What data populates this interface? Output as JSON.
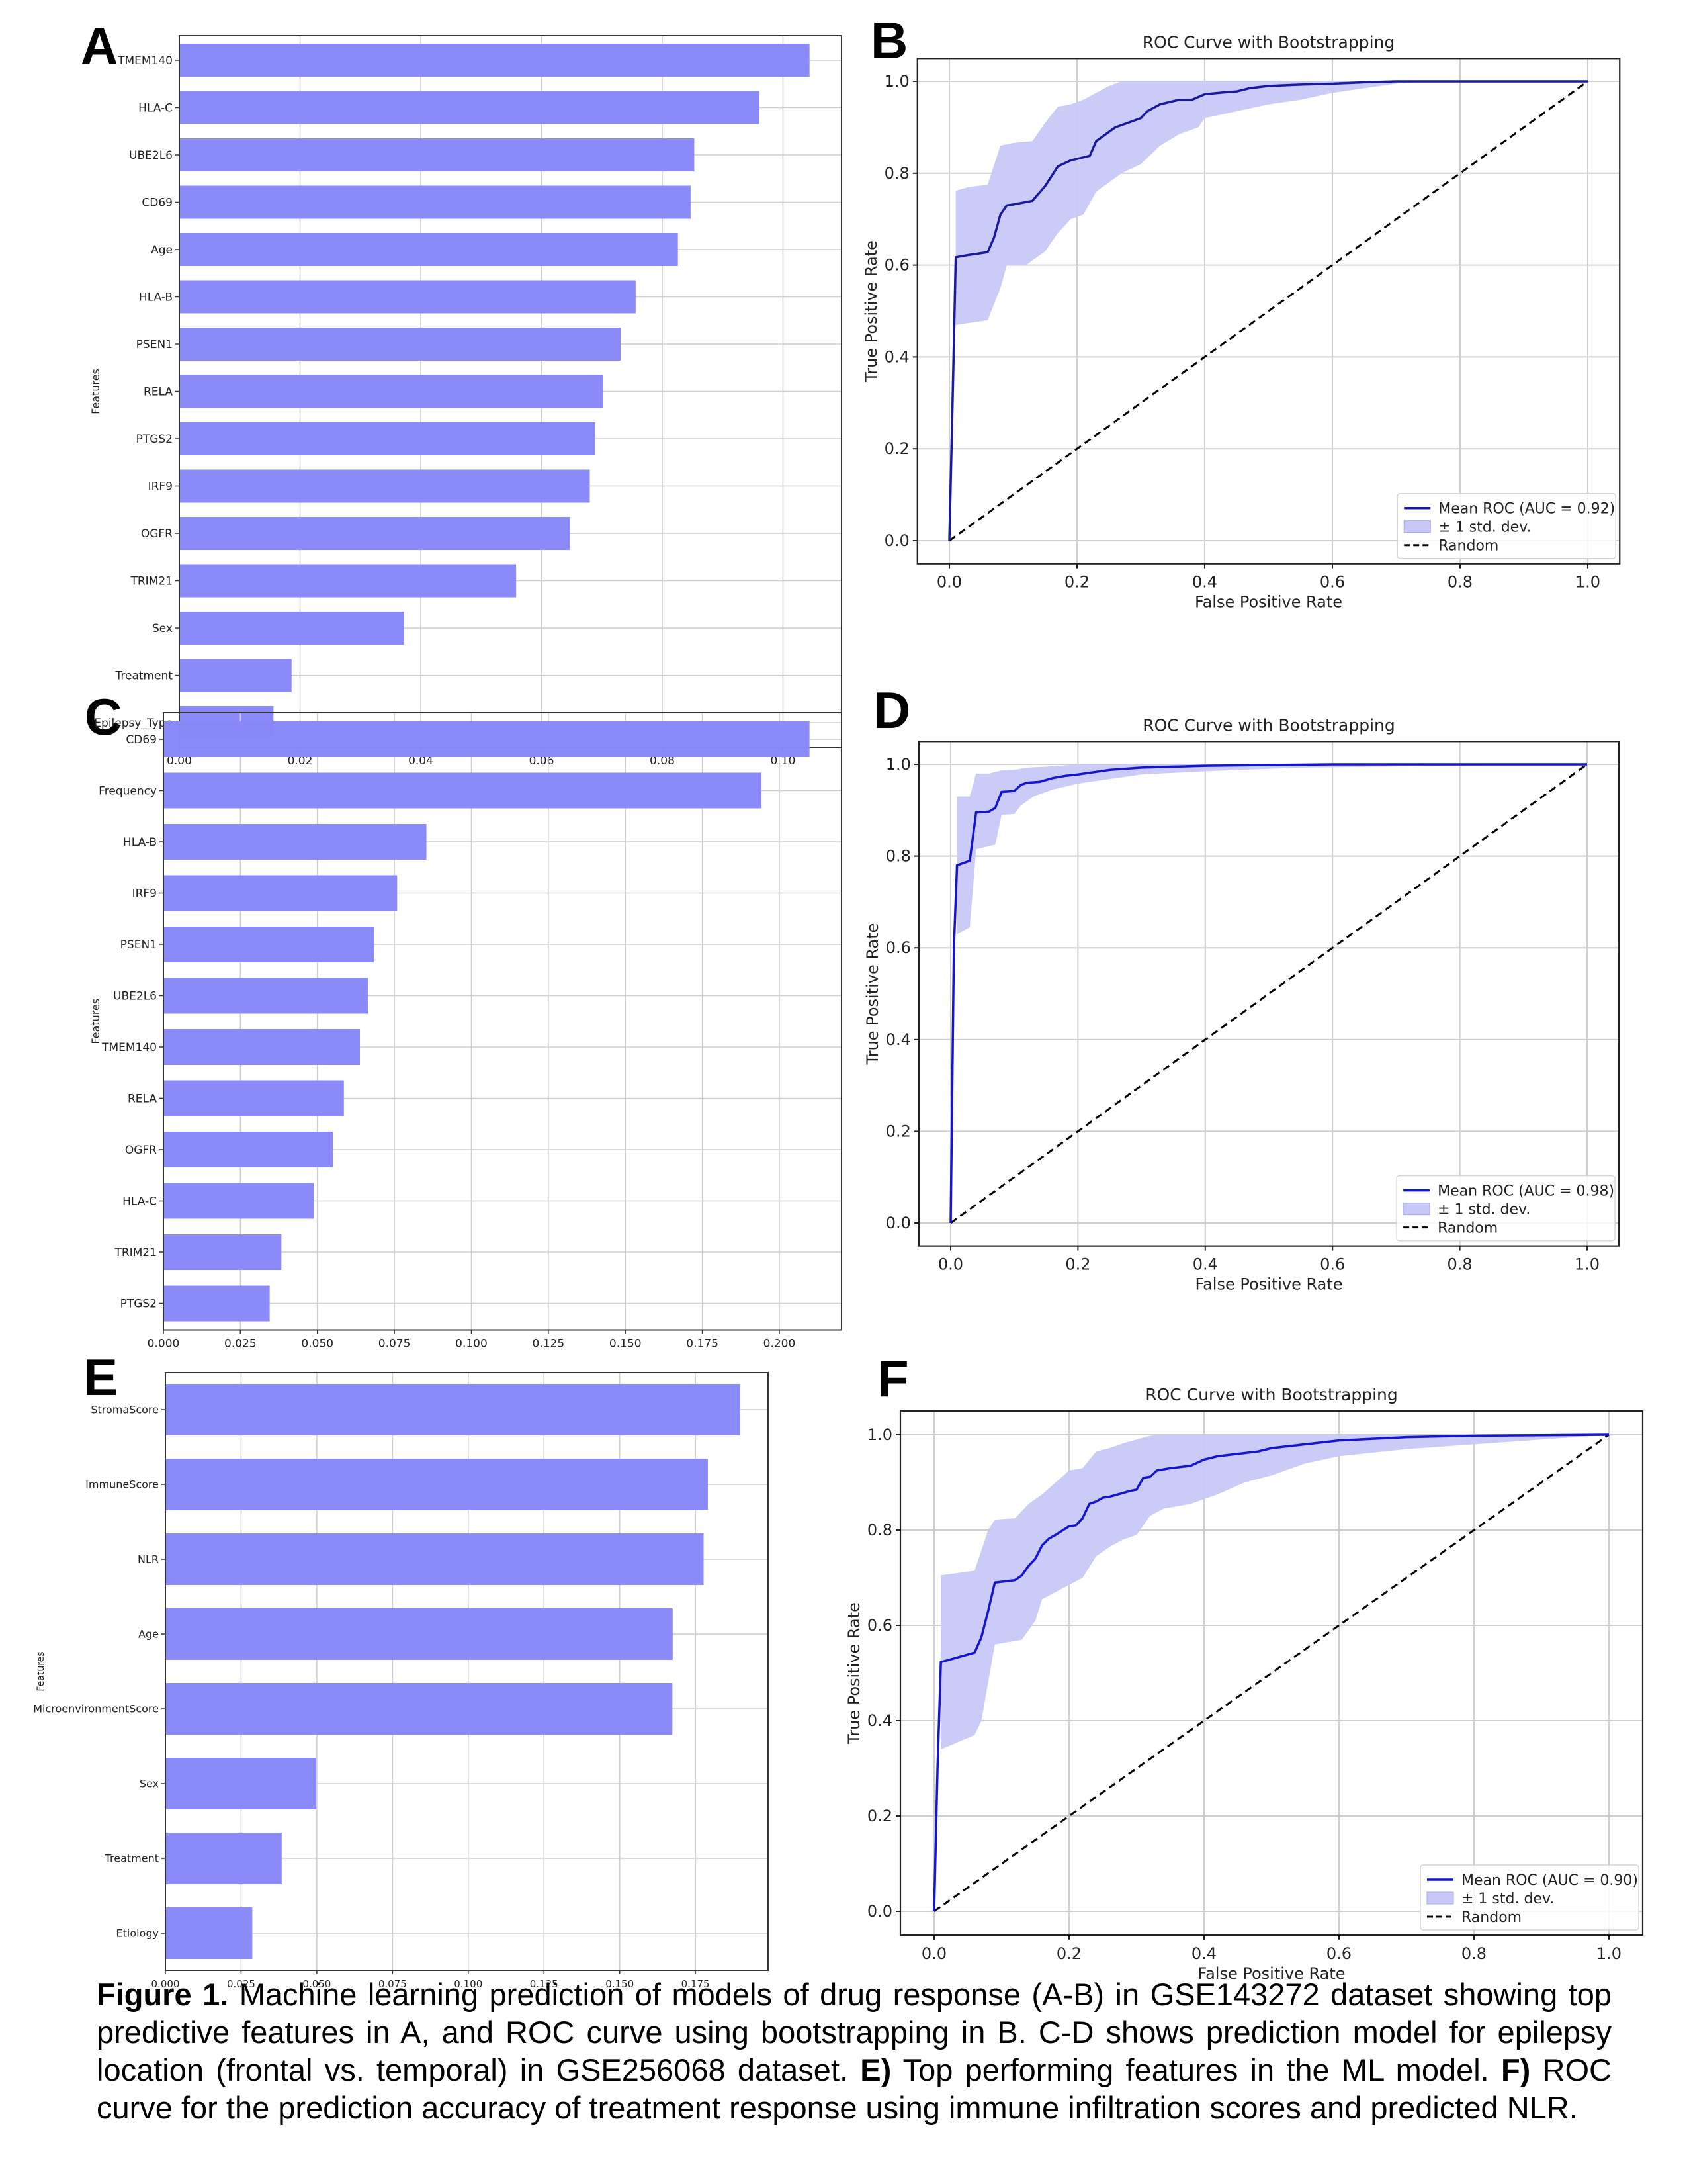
{
  "figure": {
    "caption": {
      "label": "Figure 1.",
      "part1": " Machine learning prediction of models of drug response (A-B) in GSE143272 dataset showing top predictive features in A, and ROC curve using bootstrapping in B. C-D shows prediction model for epilepsy location (frontal vs. temporal) in GSE256068 dataset. ",
      "e_label": "E)",
      "part2": " Top performing features in the ML model. ",
      "f_label": "F)",
      "part3": " ROC curve for the prediction accuracy of treatment response using immune infiltration scores and predicted NLR."
    },
    "colors": {
      "bar": "#8888f8",
      "roc_line": "#1a1aa0",
      "roc_line_bright": "#1515d0",
      "band": "#c8c8f8",
      "random": "#000000",
      "grid": "#cfcfcf"
    }
  },
  "chart_data": [
    {
      "panel": "A",
      "type": "bar",
      "orientation": "horizontal",
      "title": "",
      "xlabel": "",
      "ylabel": "Features",
      "categories": [
        "TMEM140",
        "HLA-C",
        "UBE2L6",
        "CD69",
        "Age",
        "HLA-B",
        "PSEN1",
        "RELA",
        "PTGS2",
        "IRF9",
        "OGFR",
        "TRIM21",
        "Sex",
        "Treatment",
        "Epilepsy_Type"
      ],
      "values": [
        0.1044,
        0.0961,
        0.0853,
        0.0847,
        0.0826,
        0.0756,
        0.0731,
        0.0702,
        0.0689,
        0.068,
        0.0647,
        0.0558,
        0.0372,
        0.0186,
        0.0156
      ],
      "xlim": [
        0,
        0.1097
      ],
      "xticks": [
        "0.00",
        "0.02",
        "0.04",
        "0.06",
        "0.08",
        "0.10"
      ],
      "xtick_values": [
        0,
        0.02,
        0.04,
        0.06,
        0.08,
        0.1
      ],
      "grid": true
    },
    {
      "panel": "B",
      "type": "line",
      "title": "ROC Curve with Bootstrapping",
      "xlabel": "False Positive Rate",
      "ylabel": "True Positive Rate",
      "xlim": [
        -0.05,
        1.05
      ],
      "ylim": [
        -0.05,
        1.05
      ],
      "xticks": [
        "0.0",
        "0.2",
        "0.4",
        "0.6",
        "0.8",
        "1.0"
      ],
      "yticks": [
        "0.0",
        "0.2",
        "0.4",
        "0.6",
        "0.8",
        "1.0"
      ],
      "tick_values": [
        0,
        0.2,
        0.4,
        0.6,
        0.8,
        1.0
      ],
      "grid": true,
      "legend": {
        "placement": "lower-right",
        "entries": [
          "Mean ROC (AUC = 0.92)",
          "± 1 std. dev.",
          "Random"
        ]
      },
      "series": [
        {
          "name": "Mean ROC (AUC = 0.92)",
          "x": [
            0,
            0.005,
            0.01,
            0.03,
            0.06,
            0.07,
            0.08,
            0.09,
            0.1,
            0.13,
            0.15,
            0.17,
            0.19,
            0.22,
            0.23,
            0.25,
            0.26,
            0.28,
            0.3,
            0.31,
            0.33,
            0.36,
            0.38,
            0.4,
            0.43,
            0.45,
            0.47,
            0.5,
            0.55,
            0.6,
            0.65,
            0.7,
            0.8,
            0.9,
            1.0
          ],
          "y": [
            0,
            0.3,
            0.617,
            0.622,
            0.628,
            0.66,
            0.71,
            0.73,
            0.732,
            0.74,
            0.772,
            0.815,
            0.828,
            0.838,
            0.87,
            0.89,
            0.9,
            0.91,
            0.92,
            0.935,
            0.95,
            0.96,
            0.96,
            0.972,
            0.976,
            0.978,
            0.985,
            0.99,
            0.993,
            0.995,
            0.998,
            1.0,
            1.0,
            1.0,
            1.0
          ]
        },
        {
          "name": "± 1 std. dev. upper",
          "x": [
            0.01,
            0.03,
            0.06,
            0.08,
            0.1,
            0.13,
            0.15,
            0.17,
            0.19,
            0.21,
            0.23,
            0.25,
            0.27,
            1.0
          ],
          "y": [
            0.762,
            0.77,
            0.775,
            0.86,
            0.866,
            0.87,
            0.91,
            0.945,
            0.95,
            0.96,
            0.975,
            0.99,
            1.0,
            1.0
          ]
        },
        {
          "name": "± 1 std. dev. lower",
          "x": [
            0.01,
            0.06,
            0.08,
            0.09,
            0.12,
            0.15,
            0.17,
            0.19,
            0.21,
            0.23,
            0.25,
            0.27,
            0.3,
            0.33,
            0.36,
            0.39,
            0.4,
            0.45,
            0.5,
            0.55,
            0.6,
            0.65,
            0.7,
            0.75,
            1.0
          ],
          "y": [
            0.47,
            0.48,
            0.55,
            0.6,
            0.6,
            0.63,
            0.67,
            0.7,
            0.71,
            0.76,
            0.78,
            0.8,
            0.82,
            0.86,
            0.885,
            0.9,
            0.92,
            0.935,
            0.95,
            0.96,
            0.975,
            0.985,
            0.995,
            1.0,
            1.0
          ]
        },
        {
          "name": "Random",
          "x": [
            0,
            1
          ],
          "y": [
            0,
            1
          ]
        }
      ]
    },
    {
      "panel": "C",
      "type": "bar",
      "orientation": "horizontal",
      "title": "",
      "xlabel": "",
      "ylabel": "Features",
      "categories": [
        "CD69",
        "Frequency",
        "HLA-B",
        "IRF9",
        "PSEN1",
        "UBE2L6",
        "TMEM140",
        "RELA",
        "OGFR",
        "HLA-C",
        "TRIM21",
        "PTGS2"
      ],
      "values": [
        0.2098,
        0.1942,
        0.0854,
        0.0759,
        0.0684,
        0.0664,
        0.0638,
        0.0586,
        0.055,
        0.0488,
        0.0383,
        0.0345
      ],
      "xlim": [
        0,
        0.2202
      ],
      "xticks": [
        "0.000",
        "0.025",
        "0.050",
        "0.075",
        "0.100",
        "0.125",
        "0.150",
        "0.175",
        "0.200"
      ],
      "xtick_values": [
        0,
        0.025,
        0.05,
        0.075,
        0.1,
        0.125,
        0.15,
        0.175,
        0.2
      ],
      "grid": true
    },
    {
      "panel": "D",
      "type": "line",
      "title": "ROC Curve with Bootstrapping",
      "xlabel": "False Positive Rate",
      "ylabel": "True Positive Rate",
      "xlim": [
        -0.05,
        1.05
      ],
      "ylim": [
        -0.05,
        1.05
      ],
      "xticks": [
        "0.0",
        "0.2",
        "0.4",
        "0.6",
        "0.8",
        "1.0"
      ],
      "yticks": [
        "0.0",
        "0.2",
        "0.4",
        "0.6",
        "0.8",
        "1.0"
      ],
      "tick_values": [
        0,
        0.2,
        0.4,
        0.6,
        0.8,
        1.0
      ],
      "grid": true,
      "legend": {
        "placement": "lower-right",
        "entries": [
          "Mean ROC (AUC = 0.98)",
          "± 1 std. dev.",
          "Random"
        ]
      },
      "series": [
        {
          "name": "Mean ROC (AUC = 0.98)",
          "x": [
            0,
            0.005,
            0.01,
            0.03,
            0.04,
            0.06,
            0.07,
            0.08,
            0.1,
            0.11,
            0.12,
            0.14,
            0.16,
            0.18,
            0.2,
            0.25,
            0.3,
            0.4,
            0.6,
            1.0
          ],
          "y": [
            0,
            0.6,
            0.78,
            0.79,
            0.895,
            0.897,
            0.905,
            0.94,
            0.942,
            0.955,
            0.96,
            0.962,
            0.97,
            0.975,
            0.978,
            0.988,
            0.993,
            0.997,
            1.0,
            1.0
          ]
        },
        {
          "name": "± 1 std. dev. upper",
          "x": [
            0.01,
            0.03,
            0.04,
            0.06,
            0.08,
            0.1,
            0.12,
            0.15,
            0.2,
            1.0
          ],
          "y": [
            0.93,
            0.93,
            0.98,
            0.98,
            0.987,
            0.988,
            0.993,
            0.995,
            1.0,
            1.0
          ]
        },
        {
          "name": "± 1 std. dev. lower",
          "x": [
            0.01,
            0.03,
            0.04,
            0.07,
            0.08,
            0.1,
            0.11,
            0.13,
            0.16,
            0.2,
            0.25,
            0.3,
            0.4,
            0.55,
            1.0
          ],
          "y": [
            0.63,
            0.645,
            0.815,
            0.825,
            0.89,
            0.892,
            0.91,
            0.93,
            0.945,
            0.958,
            0.968,
            0.978,
            0.985,
            0.993,
            1.0
          ]
        },
        {
          "name": "Random",
          "x": [
            0,
            1
          ],
          "y": [
            0,
            1
          ]
        }
      ]
    },
    {
      "panel": "E",
      "type": "bar",
      "orientation": "horizontal",
      "title": "",
      "xlabel": "",
      "ylabel": "Features",
      "categories": [
        "StromaScore",
        "ImmuneScore",
        "NLR",
        "Age",
        "MicroenvironmentScore",
        "Sex",
        "Treatment",
        "Etiology"
      ],
      "values": [
        0.1897,
        0.1791,
        0.1777,
        0.1675,
        0.1674,
        0.0498,
        0.0384,
        0.0287
      ],
      "xlim": [
        0,
        0.199
      ],
      "xticks": [
        "0.000",
        "0.025",
        "0.050",
        "0.075",
        "0.100",
        "0.125",
        "0.150",
        "0.175"
      ],
      "xtick_values": [
        0,
        0.025,
        0.05,
        0.075,
        0.1,
        0.125,
        0.15,
        0.175
      ],
      "grid": true
    },
    {
      "panel": "F",
      "type": "line",
      "title": "ROC Curve with Bootstrapping",
      "xlabel": "False Positive Rate",
      "ylabel": "True Positive Rate",
      "xlim": [
        -0.05,
        1.05
      ],
      "ylim": [
        -0.05,
        1.05
      ],
      "xticks": [
        "0.0",
        "0.2",
        "0.4",
        "0.6",
        "0.8",
        "1.0"
      ],
      "yticks": [
        "0.0",
        "0.2",
        "0.4",
        "0.6",
        "0.8",
        "1.0"
      ],
      "tick_values": [
        0,
        0.2,
        0.4,
        0.6,
        0.8,
        1.0
      ],
      "grid": true,
      "legend": {
        "placement": "lower-right",
        "entries": [
          "Mean ROC (AUC = 0.90)",
          "± 1 std. dev.",
          "Random"
        ]
      },
      "series": [
        {
          "name": "Mean ROC (AUC = 0.90)",
          "x": [
            0,
            0.005,
            0.01,
            0.06,
            0.07,
            0.08,
            0.09,
            0.12,
            0.13,
            0.14,
            0.15,
            0.16,
            0.17,
            0.18,
            0.2,
            0.21,
            0.22,
            0.23,
            0.24,
            0.25,
            0.26,
            0.28,
            0.29,
            0.3,
            0.31,
            0.32,
            0.33,
            0.35,
            0.38,
            0.4,
            0.42,
            0.45,
            0.48,
            0.5,
            0.55,
            0.6,
            0.7,
            0.8,
            0.9,
            1.0
          ],
          "y": [
            0,
            0.3,
            0.523,
            0.543,
            0.575,
            0.63,
            0.69,
            0.695,
            0.705,
            0.725,
            0.74,
            0.768,
            0.782,
            0.79,
            0.808,
            0.81,
            0.825,
            0.855,
            0.86,
            0.868,
            0.87,
            0.878,
            0.882,
            0.885,
            0.91,
            0.912,
            0.925,
            0.93,
            0.935,
            0.948,
            0.955,
            0.96,
            0.965,
            0.972,
            0.98,
            0.988,
            0.995,
            0.998,
            0.999,
            1.0
          ]
        },
        {
          "name": "± 1 std. dev. upper",
          "x": [
            0.01,
            0.06,
            0.08,
            0.09,
            0.12,
            0.14,
            0.16,
            0.18,
            0.2,
            0.22,
            0.24,
            0.26,
            0.28,
            0.3,
            0.32,
            0.34,
            1.0
          ],
          "y": [
            0.705,
            0.715,
            0.8,
            0.822,
            0.825,
            0.855,
            0.875,
            0.9,
            0.925,
            0.93,
            0.965,
            0.972,
            0.982,
            0.99,
            0.998,
            1.0,
            1.0
          ]
        },
        {
          "name": "± 1 std. dev. lower",
          "x": [
            0.01,
            0.06,
            0.07,
            0.08,
            0.09,
            0.13,
            0.15,
            0.16,
            0.18,
            0.2,
            0.22,
            0.24,
            0.26,
            0.28,
            0.3,
            0.32,
            0.34,
            0.38,
            0.42,
            0.46,
            0.5,
            0.55,
            0.6,
            0.7,
            0.8,
            0.9,
            1.0
          ],
          "y": [
            0.34,
            0.37,
            0.4,
            0.48,
            0.56,
            0.57,
            0.61,
            0.655,
            0.67,
            0.685,
            0.7,
            0.745,
            0.765,
            0.78,
            0.79,
            0.83,
            0.845,
            0.855,
            0.875,
            0.9,
            0.915,
            0.94,
            0.955,
            0.97,
            0.98,
            0.99,
            1.0
          ]
        },
        {
          "name": "Random",
          "x": [
            0,
            1
          ],
          "y": [
            0,
            1
          ]
        }
      ]
    }
  ],
  "panels": {
    "A": "A",
    "B": "B",
    "C": "C",
    "D": "D",
    "E": "E",
    "F": "F"
  }
}
